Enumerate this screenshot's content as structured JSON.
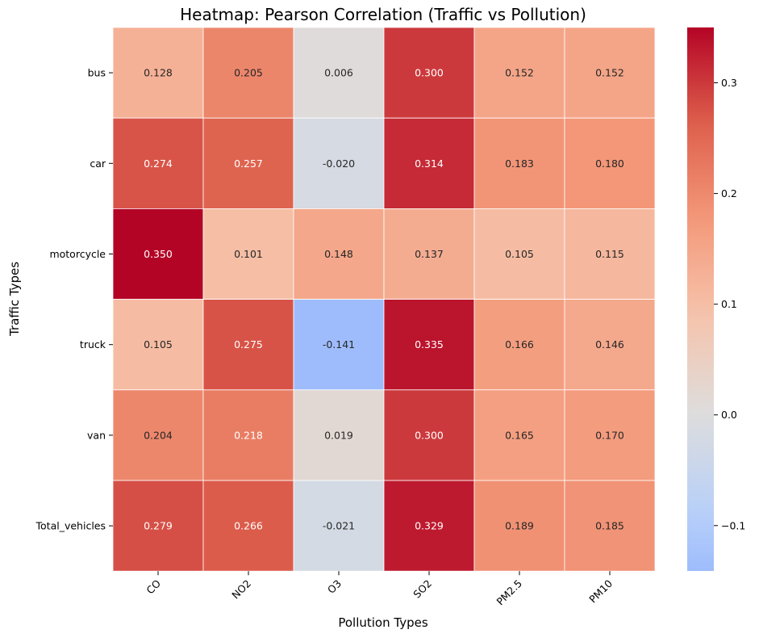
{
  "chart_data": {
    "type": "heatmap",
    "title": "Heatmap: Pearson Correlation (Traffic vs Pollution)",
    "xlabel": "Pollution Types",
    "ylabel": "Traffic Types",
    "columns": [
      "CO",
      "NO2",
      "O3",
      "SO2",
      "PM2.5",
      "PM10"
    ],
    "rows": [
      "bus",
      "car",
      "motorcycle",
      "truck",
      "van",
      "Total_vehicles"
    ],
    "values": [
      [
        0.128,
        0.205,
        0.006,
        0.3,
        0.152,
        0.152
      ],
      [
        0.274,
        0.257,
        -0.02,
        0.314,
        0.183,
        0.18
      ],
      [
        0.35,
        0.101,
        0.148,
        0.137,
        0.105,
        0.115
      ],
      [
        0.105,
        0.275,
        -0.141,
        0.335,
        0.166,
        0.146
      ],
      [
        0.204,
        0.218,
        0.019,
        0.3,
        0.165,
        0.17
      ],
      [
        0.279,
        0.266,
        -0.021,
        0.329,
        0.189,
        0.185
      ]
    ],
    "annotation_format": "0.000",
    "colormap": "coolwarm",
    "center": 0.0,
    "vmin": -0.141,
    "vmax": 0.35,
    "colorbar_ticks": [
      -0.1,
      0.0,
      0.1,
      0.2,
      0.3
    ],
    "colorbar_tick_labels": [
      "−0.1",
      "0.0",
      "0.1",
      "0.2",
      "0.3"
    ],
    "cell_border_color": "#ffffff",
    "colorbar_position": "right"
  }
}
